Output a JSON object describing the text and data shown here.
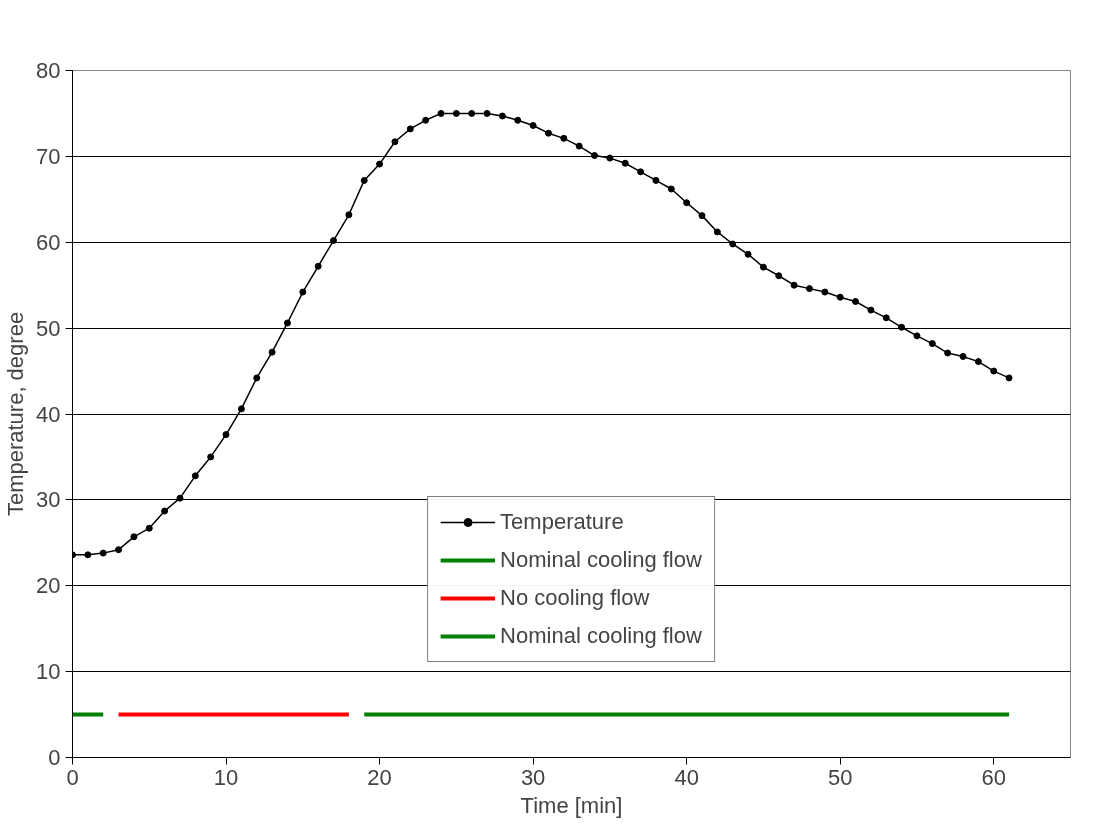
{
  "chart_data": {
    "type": "line",
    "xlabel": "Time [min]",
    "ylabel": "Temperature, degree",
    "xlim": [
      0,
      65
    ],
    "xticks": [
      0,
      10,
      20,
      30,
      40,
      50,
      60
    ],
    "ylim": [
      0,
      80
    ],
    "yticks": [
      0,
      10,
      20,
      30,
      40,
      50,
      60,
      70,
      80
    ],
    "grid": "y",
    "legend": "bottom",
    "line_style": "solid",
    "series": [
      {
        "name": "Temperature",
        "color": "#000000",
        "marker": "circle",
        "x": [
          0,
          1,
          2,
          3,
          4,
          5,
          6,
          7,
          8,
          9,
          10,
          11,
          12,
          13,
          14,
          15,
          16,
          17,
          18,
          19,
          20,
          21,
          22,
          23,
          24,
          25,
          26,
          27,
          28,
          29,
          30,
          31,
          32,
          33,
          34,
          35,
          36,
          37,
          38,
          39,
          40,
          41,
          42,
          43,
          44,
          45,
          46,
          47,
          48,
          49,
          50,
          51,
          52,
          53,
          54,
          55,
          56,
          57,
          58,
          59,
          60,
          61
        ],
        "values": [
          23.6,
          23.6,
          23.8,
          24.2,
          25.7,
          26.7,
          28.7,
          30.2,
          32.8,
          35.0,
          37.6,
          40.6,
          44.2,
          47.2,
          50.6,
          54.2,
          57.2,
          60.2,
          63.2,
          67.2,
          69.1,
          71.7,
          73.2,
          74.2,
          75.0,
          75.0,
          75.0,
          75.0,
          74.7,
          74.2,
          73.6,
          72.7,
          72.1,
          71.2,
          70.1,
          69.8,
          69.2,
          68.2,
          67.2,
          66.2,
          64.6,
          63.1,
          61.2,
          59.8,
          58.6,
          57.1,
          56.1,
          55.0,
          54.6,
          54.2,
          53.6,
          53.1,
          52.1,
          51.2,
          50.1,
          49.1,
          48.2,
          47.1,
          46.7,
          46.1,
          45.0,
          44.2
        ]
      },
      {
        "name": "Nominal cooling flow",
        "color": "#008000",
        "marker": "none",
        "x": [
          0,
          2
        ],
        "values": [
          5,
          5
        ]
      },
      {
        "name": "No cooling flow",
        "color": "#ff0000",
        "marker": "none",
        "x": [
          3,
          18
        ],
        "values": [
          5,
          5
        ]
      },
      {
        "name": "Nominal cooling flow",
        "color": "#008000",
        "marker": "none",
        "x": [
          19,
          61
        ],
        "values": [
          5,
          5
        ]
      }
    ]
  }
}
